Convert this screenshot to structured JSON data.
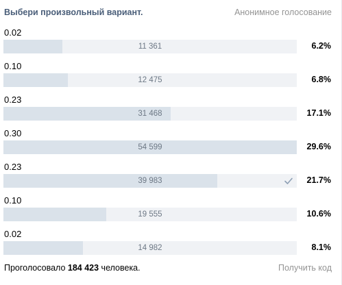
{
  "poll": {
    "title": "Выбери произвольный вариант.",
    "anonymous_label": "Анонимное голосование",
    "options": [
      {
        "label": "0.02",
        "votes": "11 361",
        "percent": "6.2%",
        "share": 0.2,
        "selected": false
      },
      {
        "label": "0.10",
        "votes": "12 475",
        "percent": "6.8%",
        "share": 0.22,
        "selected": false
      },
      {
        "label": "0.23",
        "votes": "31 468",
        "percent": "17.1%",
        "share": 0.57,
        "selected": false
      },
      {
        "label": "0.30",
        "votes": "54 599",
        "percent": "29.6%",
        "share": 1.0,
        "selected": false
      },
      {
        "label": "0.23",
        "votes": "39 983",
        "percent": "21.7%",
        "share": 0.73,
        "selected": true
      },
      {
        "label": "0.10",
        "votes": "19 555",
        "percent": "10.6%",
        "share": 0.35,
        "selected": false
      },
      {
        "label": "0.02",
        "votes": "14 982",
        "percent": "8.1%",
        "share": 0.27,
        "selected": false
      }
    ],
    "footer": {
      "total_prefix": "Проголосовало ",
      "total_count": "184 423",
      "total_suffix": " человека.",
      "get_code_label": "Получить код"
    }
  },
  "colors": {
    "title": "#4a5e79",
    "muted": "#939393",
    "bar_fill": "#dae2ea",
    "bar_track": "#f0f2f5",
    "check": "#8d9fb4"
  },
  "icons": {
    "selected_marker": "check-icon"
  }
}
